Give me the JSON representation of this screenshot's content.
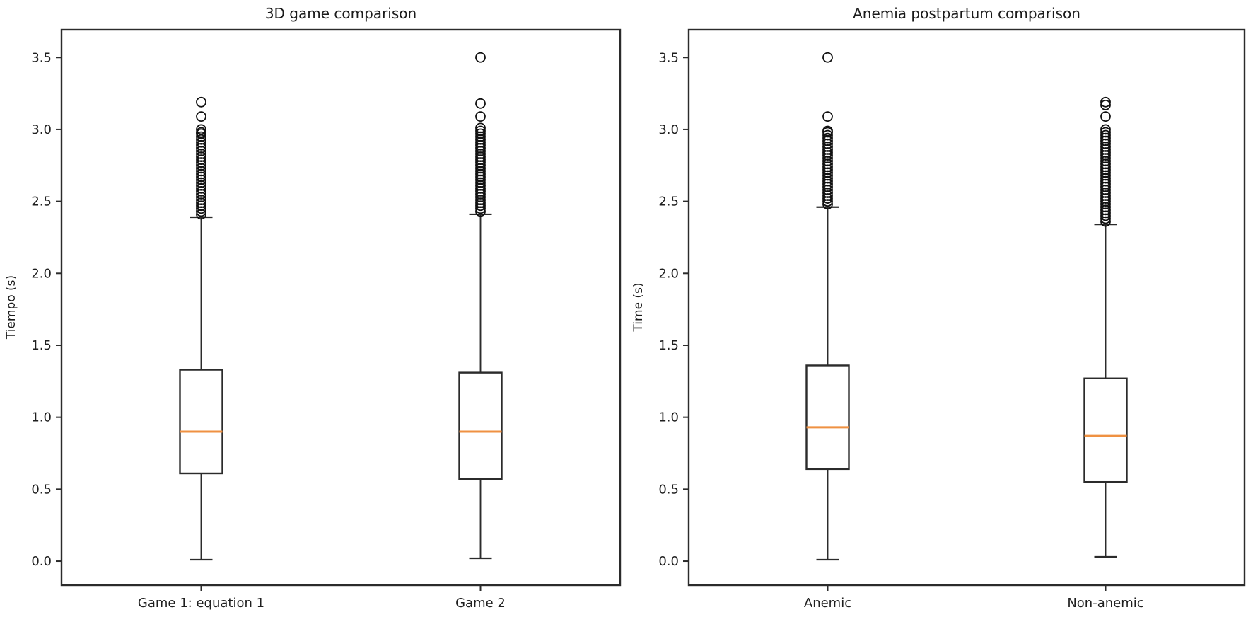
{
  "figure": {
    "background": "#ffffff",
    "line_color": "#2b2b2b",
    "median_color": "#ef9142",
    "text_color": "#1f1f1f"
  },
  "chart_data": [
    {
      "type": "box",
      "title": "3D game comparison",
      "xlabel": "",
      "ylabel": "Tiempo (s)",
      "categories": [
        "Game 1: equation 1",
        "Game 2"
      ],
      "yticks": [
        "0.0",
        "0.5",
        "1.0",
        "1.5",
        "2.0",
        "2.5",
        "3.0",
        "3.5"
      ],
      "ylim": [
        -0.167,
        3.693
      ],
      "grid": false,
      "boxes": [
        {
          "label": "Game 1: equation 1",
          "whisker_low": 0.01,
          "q1": 0.61,
          "median": 0.9,
          "q3": 1.33,
          "whisker_high": 2.39,
          "outliers": [
            3.19,
            3.09,
            3.0,
            2.98,
            2.97,
            2.95,
            2.93,
            2.91,
            2.89,
            2.87,
            2.85,
            2.83,
            2.81,
            2.79,
            2.77,
            2.75,
            2.73,
            2.71,
            2.69,
            2.67,
            2.65,
            2.63,
            2.61,
            2.59,
            2.57,
            2.55,
            2.53,
            2.51,
            2.49,
            2.47,
            2.45,
            2.43,
            2.41
          ]
        },
        {
          "label": "Game 2",
          "whisker_low": 0.02,
          "q1": 0.57,
          "median": 0.9,
          "q3": 1.31,
          "whisker_high": 2.41,
          "outliers": [
            3.5,
            3.18,
            3.09,
            3.01,
            2.99,
            2.97,
            2.95,
            2.93,
            2.91,
            2.89,
            2.87,
            2.85,
            2.83,
            2.81,
            2.79,
            2.77,
            2.75,
            2.73,
            2.71,
            2.69,
            2.67,
            2.65,
            2.63,
            2.61,
            2.59,
            2.57,
            2.55,
            2.53,
            2.51,
            2.49,
            2.47,
            2.45,
            2.43
          ]
        }
      ]
    },
    {
      "type": "box",
      "title": "Anemia postpartum comparison",
      "xlabel": "",
      "ylabel": "Time (s)",
      "categories": [
        "Anemic",
        "Non-anemic"
      ],
      "yticks": [
        "0.0",
        "0.5",
        "1.0",
        "1.5",
        "2.0",
        "2.5",
        "3.0",
        "3.5"
      ],
      "ylim": [
        -0.167,
        3.693
      ],
      "grid": false,
      "boxes": [
        {
          "label": "Anemic",
          "whisker_low": 0.01,
          "q1": 0.64,
          "median": 0.93,
          "q3": 1.36,
          "whisker_high": 2.46,
          "outliers": [
            3.5,
            3.09,
            2.99,
            2.98,
            2.96,
            2.94,
            2.92,
            2.9,
            2.88,
            2.86,
            2.84,
            2.82,
            2.8,
            2.78,
            2.76,
            2.74,
            2.72,
            2.7,
            2.68,
            2.66,
            2.64,
            2.62,
            2.6,
            2.58,
            2.56,
            2.54,
            2.52,
            2.5,
            2.48
          ]
        },
        {
          "label": "Non-anemic",
          "whisker_low": 0.03,
          "q1": 0.55,
          "median": 0.87,
          "q3": 1.27,
          "whisker_high": 2.34,
          "outliers": [
            3.19,
            3.17,
            3.09,
            3.0,
            2.98,
            2.96,
            2.94,
            2.92,
            2.9,
            2.88,
            2.86,
            2.84,
            2.82,
            2.8,
            2.78,
            2.76,
            2.74,
            2.72,
            2.7,
            2.68,
            2.66,
            2.64,
            2.62,
            2.6,
            2.58,
            2.56,
            2.54,
            2.52,
            2.5,
            2.48,
            2.46,
            2.44,
            2.42,
            2.4,
            2.38,
            2.36
          ]
        }
      ]
    }
  ]
}
